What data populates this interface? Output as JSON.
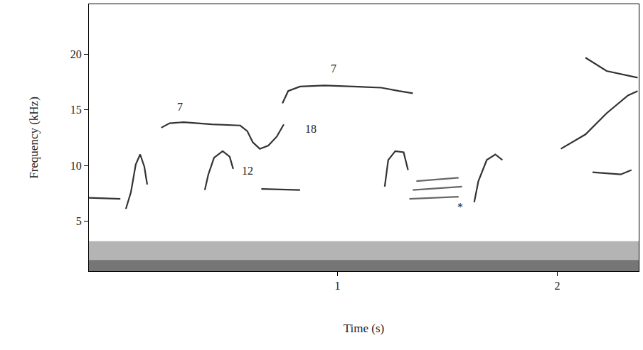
{
  "chart_data": {
    "type": "line",
    "x_label": "Time (s)",
    "y_label": "Frequency (kHz)",
    "xlim": [
      -0.13,
      2.37
    ],
    "ylim": [
      0.5,
      24.5
    ],
    "xticks": [
      1,
      2
    ],
    "yticks": [
      5,
      10,
      15,
      20
    ],
    "grid": false,
    "annotations": [
      {
        "text": "7",
        "x": 0.285,
        "y": 15.3
      },
      {
        "text": "7",
        "x": 0.981,
        "y": 18.7
      },
      {
        "text": "18",
        "x": 0.878,
        "y": 13.3
      },
      {
        "text": "12",
        "x": 0.59,
        "y": 9.55
      },
      {
        "text": "*",
        "x": 1.558,
        "y": 6.3
      }
    ],
    "series": [
      {
        "type": "area",
        "color": "#b4b4b4",
        "x": [
          -0.13,
          2.37
        ],
        "values": [
          3.2,
          3.2
        ]
      },
      {
        "type": "area",
        "color": "#767676",
        "x": [
          -0.13,
          2.37
        ],
        "values": [
          1.5,
          1.5
        ]
      },
      {
        "color": "#333333",
        "x": [
          0.199,
          0.237,
          0.301,
          0.429,
          0.558,
          0.59,
          0.615,
          0.647,
          0.686,
          0.724,
          0.756
        ],
        "values": [
          13.4,
          13.8,
          13.9,
          13.7,
          13.6,
          13.1,
          12.1,
          11.5,
          11.8,
          12.6,
          13.7
        ]
      },
      {
        "color": "#333333",
        "x": [
          0.75,
          0.776,
          0.83,
          0.942,
          1.071,
          1.199,
          1.279,
          1.343
        ],
        "values": [
          15.6,
          16.7,
          17.1,
          17.2,
          17.1,
          17.0,
          16.7,
          16.5
        ]
      },
      {
        "color": "#333333",
        "x": [
          -0.131,
          0.013
        ],
        "values": [
          7.1,
          7.0
        ]
      },
      {
        "color": "#333333",
        "x": [
          0.038,
          0.061,
          0.083,
          0.103,
          0.122,
          0.135
        ],
        "values": [
          6.1,
          7.6,
          10.1,
          11.0,
          9.9,
          8.3
        ]
      },
      {
        "color": "#333333",
        "x": [
          0.397,
          0.413,
          0.439,
          0.478,
          0.51,
          0.526
        ],
        "values": [
          7.8,
          9.2,
          10.7,
          11.3,
          10.8,
          9.7
        ]
      },
      {
        "color": "#333333",
        "x": [
          0.654,
          0.83
        ],
        "values": [
          7.9,
          7.8
        ]
      },
      {
        "color": "#333333",
        "x": [
          1.215,
          1.231,
          1.263,
          1.301,
          1.321
        ],
        "values": [
          8.1,
          10.5,
          11.3,
          11.2,
          9.6
        ]
      },
      {
        "color": "#666666",
        "x": [
          1.359,
          1.551
        ],
        "values": [
          8.6,
          8.9
        ]
      },
      {
        "color": "#666666",
        "x": [
          1.343,
          1.567
        ],
        "values": [
          7.8,
          8.1
        ]
      },
      {
        "color": "#666666",
        "x": [
          1.327,
          1.551
        ],
        "values": [
          7.0,
          7.2
        ]
      },
      {
        "color": "#333333",
        "x": [
          1.622,
          1.641,
          1.679,
          1.718,
          1.75
        ],
        "values": [
          6.7,
          8.6,
          10.5,
          11.0,
          10.5
        ]
      },
      {
        "color": "#333333",
        "x": [
          2.016,
          2.128,
          2.224,
          2.321,
          2.365
        ],
        "values": [
          11.5,
          12.8,
          14.7,
          16.3,
          16.7
        ]
      },
      {
        "color": "#333333",
        "x": [
          2.128,
          2.224,
          2.365
        ],
        "values": [
          19.7,
          18.5,
          17.9
        ]
      },
      {
        "color": "#333333",
        "x": [
          2.16,
          2.288,
          2.337
        ],
        "values": [
          9.4,
          9.2,
          9.6
        ]
      }
    ]
  }
}
